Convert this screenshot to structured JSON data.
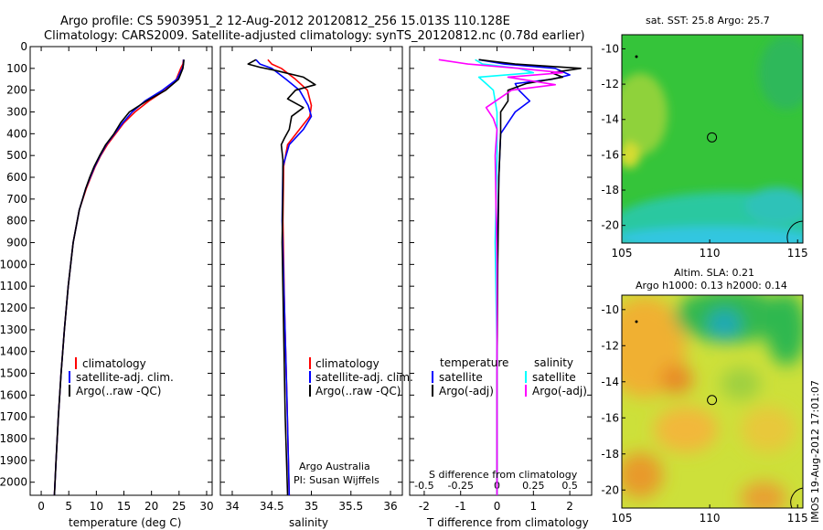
{
  "header": {
    "line1": "Argo profile: CS 5903951_2 12-Aug-2012 20120812_256 15.013S 110.128E",
    "line2": "Climatology: CARS2009. Satellite-adjusted climatology: synTS_20120812.nc (0.78d earlier)"
  },
  "colors": {
    "clim": "#ff0000",
    "sat": "#0000ff",
    "argo": "#000000",
    "sal_sat": "#00ffff",
    "sal_argo": "#ff00ff"
  },
  "chart_data": [
    {
      "type": "line",
      "name": "temperature",
      "xlabel": "temperature (deg C)",
      "ylabel": "",
      "xlim": [
        -2,
        31
      ],
      "ylim": [
        2060,
        0
      ],
      "xticks": [
        0,
        5,
        10,
        15,
        20,
        25,
        30
      ],
      "yticks": [
        0,
        100,
        200,
        300,
        400,
        500,
        600,
        700,
        800,
        900,
        1000,
        1100,
        1200,
        1300,
        1400,
        1500,
        1600,
        1700,
        1800,
        1900,
        2000
      ],
      "legend": [
        "climatology",
        "satellite-adj. clim.",
        "Argo(..raw -QC)"
      ],
      "series": [
        {
          "name": "climatology",
          "color": "#ff0000",
          "x": [
            25.8,
            25.7,
            25.3,
            24.5,
            22.5,
            19.5,
            17.0,
            15.0,
            13.5,
            12.0,
            10.8,
            9.8,
            9.0,
            8.2,
            6.9,
            5.8,
            4.9,
            4.2,
            3.6,
            3.1,
            2.7,
            2.4
          ],
          "y": [
            60,
            80,
            100,
            150,
            200,
            250,
            300,
            350,
            400,
            450,
            500,
            550,
            600,
            650,
            750,
            900,
            1100,
            1300,
            1500,
            1700,
            1900,
            2060
          ]
        },
        {
          "name": "satellite-adj. clim.",
          "color": "#0000ff",
          "x": [
            25.8,
            25.8,
            25.6,
            24.6,
            22.0,
            18.8,
            16.5,
            14.8,
            13.3,
            11.8,
            10.7,
            9.7,
            8.9,
            8.1,
            6.9,
            5.8,
            4.9,
            4.2,
            3.6,
            3.1,
            2.7,
            2.4
          ],
          "y": [
            60,
            80,
            100,
            150,
            200,
            250,
            300,
            350,
            400,
            450,
            500,
            550,
            600,
            650,
            750,
            900,
            1100,
            1300,
            1500,
            1700,
            1900,
            2060
          ]
        },
        {
          "name": "Argo(..raw -QC)",
          "color": "#000000",
          "x": [
            25.9,
            25.8,
            25.7,
            24.9,
            22.6,
            19.1,
            16.0,
            14.4,
            13.2,
            11.7,
            10.6,
            9.6,
            8.8,
            8.1,
            6.9,
            5.8,
            4.9,
            4.2,
            3.6,
            3.1,
            2.7,
            2.4
          ],
          "y": [
            60,
            80,
            100,
            150,
            200,
            250,
            300,
            350,
            400,
            450,
            500,
            550,
            600,
            650,
            750,
            900,
            1100,
            1300,
            1500,
            1700,
            1900,
            2060
          ]
        }
      ]
    },
    {
      "type": "line",
      "name": "salinity",
      "xlabel": "salinity",
      "xlim": [
        33.85,
        36.15
      ],
      "ylim": [
        2060,
        0
      ],
      "xticks": [
        34,
        34.5,
        35,
        35.5,
        36
      ],
      "xticklabels": [
        "34",
        "34.5",
        "35",
        "35.5",
        "36"
      ],
      "legend": [
        "climatology",
        "satellite-adj. clim.",
        "Argo(..raw -QC)"
      ],
      "annotation": [
        "Argo Australia",
        "PI: Susan Wijffels"
      ],
      "series": [
        {
          "name": "climatology",
          "color": "#ff0000",
          "x": [
            34.45,
            34.5,
            34.62,
            34.8,
            34.95,
            35.0,
            34.98,
            34.85,
            34.7,
            34.65,
            34.64,
            34.66,
            34.69,
            34.72
          ],
          "y": [
            60,
            80,
            100,
            150,
            200,
            270,
            320,
            380,
            450,
            550,
            800,
            1200,
            1600,
            2060
          ]
        },
        {
          "name": "satellite-adj. clim.",
          "color": "#0000ff",
          "x": [
            34.3,
            34.35,
            34.5,
            34.68,
            34.85,
            34.96,
            35.0,
            34.9,
            34.72,
            34.64,
            34.63,
            34.66,
            34.69,
            34.72
          ],
          "y": [
            60,
            80,
            100,
            150,
            200,
            270,
            320,
            380,
            450,
            550,
            800,
            1200,
            1600,
            2060
          ]
        },
        {
          "name": "Argo(..raw -QC)",
          "color": "#000000",
          "x": [
            34.3,
            34.2,
            34.35,
            34.55,
            34.9,
            35.05,
            34.8,
            34.7,
            34.9,
            34.75,
            34.72,
            34.66,
            34.62,
            34.64,
            34.64,
            34.63,
            34.65,
            34.67,
            34.7
          ],
          "y": [
            60,
            80,
            95,
            110,
            140,
            175,
            200,
            240,
            280,
            320,
            380,
            420,
            450,
            520,
            650,
            900,
            1300,
            1700,
            2060
          ]
        }
      ]
    },
    {
      "type": "line",
      "name": "differences",
      "xlabel": "T difference from climatology",
      "xlabel_top": "S difference from climatology",
      "xlim": [
        -2.4,
        2.6
      ],
      "ylim": [
        2060,
        0
      ],
      "xticks": [
        -2,
        -1,
        0,
        1,
        2
      ],
      "xticklabels": [
        "-2",
        "-1",
        "0",
        "1",
        "2"
      ],
      "top_ticks": [
        -0.5,
        -0.25,
        0,
        0.25,
        0.5
      ],
      "top_ticklabels": [
        "-0.5",
        "-0.25",
        "0",
        "0.25",
        "0.5"
      ],
      "top_scale": 4,
      "legend_left_title": "temperature",
      "legend_right_title": "salinity",
      "legend": [
        "satellite",
        "Argo(-adj)",
        "satellite",
        "Argo(-adj)"
      ],
      "series": [
        {
          "name": "T satellite",
          "color": "#0000ff",
          "x": [
            -0.5,
            0.2,
            1.6,
            2.0,
            1.5,
            0.5,
            0.6,
            0.9,
            0.5,
            0.1,
            0.05,
            0,
            0,
            0
          ],
          "y": [
            60,
            80,
            100,
            130,
            150,
            170,
            200,
            250,
            300,
            400,
            600,
            1000,
            1500,
            2060
          ]
        },
        {
          "name": "T Argo(-adj)",
          "color": "#000000",
          "x": [
            -0.5,
            0.5,
            2.3,
            1.5,
            1.8,
            0.8,
            0.3,
            0.3,
            0.1,
            0.1,
            0.05,
            0.02,
            0.0,
            0.0
          ],
          "y": [
            60,
            80,
            100,
            120,
            140,
            170,
            200,
            250,
            300,
            400,
            600,
            1000,
            1500,
            2060
          ]
        },
        {
          "name": "S satellite",
          "color": "#00ffff",
          "x": [
            -0.6,
            -0.4,
            0.6,
            1.0,
            -0.5,
            -0.3,
            -0.1,
            0.0,
            0.0,
            -0.05,
            0.0,
            0.0
          ],
          "y": [
            60,
            80,
            100,
            120,
            140,
            170,
            200,
            300,
            500,
            900,
            1400,
            2060
          ]
        },
        {
          "name": "S Argo(-adj)",
          "color": "#ff00ff",
          "x": [
            -1.6,
            -0.8,
            0.6,
            1.8,
            0.3,
            1.6,
            0.4,
            -0.3,
            -0.1,
            0.0,
            -0.05,
            0.0,
            0.0
          ],
          "y": [
            60,
            80,
            100,
            120,
            140,
            175,
            200,
            280,
            330,
            380,
            500,
            1000,
            2060
          ]
        }
      ]
    },
    {
      "type": "heatmap",
      "name": "sst-map",
      "title": "sat. SST: 25.8 Argo: 25.7",
      "xlim": [
        105,
        115.3
      ],
      "ylim": [
        -21,
        -9.2
      ],
      "xticks": [
        105,
        110,
        115
      ],
      "yticks": [
        -10,
        -12,
        -14,
        -16,
        -18,
        -20
      ],
      "marker": {
        "lon": 110.128,
        "lat": -15.013
      }
    },
    {
      "type": "heatmap",
      "name": "sla-map",
      "title_line1": "Altim. SLA: 0.21",
      "title_line2": "Argo h1000: 0.13 h2000: 0.14",
      "xlim": [
        105,
        115.3
      ],
      "ylim": [
        -21,
        -9.2
      ],
      "xticks": [
        105,
        110,
        115
      ],
      "yticks": [
        -10,
        -12,
        -14,
        -16,
        -18,
        -20
      ],
      "marker": {
        "lon": 110.128,
        "lat": -15.013
      }
    }
  ],
  "side_label": "IMOS 19-Aug-2012 17:01:07"
}
